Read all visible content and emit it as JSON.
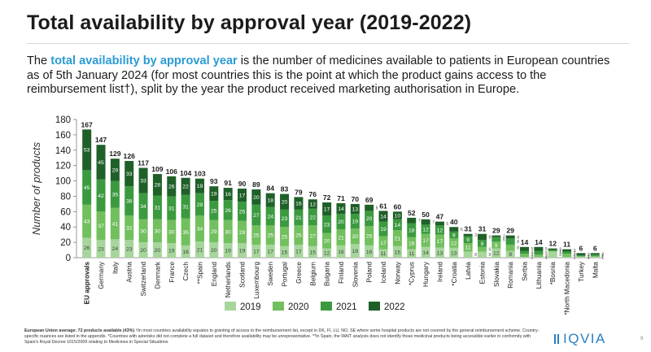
{
  "slide": {
    "title": "Total availability by approval year (2019-2022)",
    "intro_pre": "The ",
    "intro_highlight": "total availability by approval year",
    "intro_post": " is the number of medicines available to patients in European countries as of 5th January 2024 (for most countries this is the point at which the product gains access to the reimbursement list†), split by the year the product received marketing authorisation in Europe.",
    "footnote_bold": "European Union average: 72 products available (43%)",
    "footnote_text": " †In most countries availability equates to granting of access to the reimbursement list, except in DK, FI, LU, NO, SE where some hospital products are not covered by the general reimbursement scheme. Country-specific nuances are listed in the appendix. *Countries with asterisks did not complete a full dataset and therefore availability may be unrepresentative. **In Spain, the WAIT analysis does not identify those medicinal products being accessible earlier in conformity with Spain's Royal Decree 1015/2009 relating to Medicines in Special Situations",
    "logo_text": "IQVIA",
    "page_number": "9"
  },
  "chart_data": {
    "type": "bar",
    "stacked": true,
    "title": "",
    "ylabel": "Number of products",
    "xlabel": "",
    "ylim": [
      0,
      180
    ],
    "yticks": [
      0,
      20,
      40,
      60,
      80,
      100,
      120,
      140,
      160,
      180
    ],
    "legend_position": "bottom",
    "categories": [
      "EU approvals",
      "Germany",
      "Italy",
      "Austria",
      "Switzerland",
      "Denmark",
      "France",
      "Czech",
      "**Spain",
      "England",
      "Netherlands",
      "Scotland",
      "Luxembourg",
      "Sweden",
      "Portugal",
      "Greece",
      "Belgium",
      "Bulgaria",
      "Finland",
      "Slovenia",
      "Poland",
      "Iceland",
      "Norway",
      "*Cyprus",
      "Hungary",
      "Ireland",
      "*Croatia",
      "Latvia",
      "Estonia",
      "Slovakia",
      "Romania",
      "Serbia",
      "Lithuania",
      "*Bosnia",
      "*North Macedonia",
      "Turkey",
      "Malta"
    ],
    "totals": [
      167,
      147,
      129,
      126,
      117,
      109,
      106,
      104,
      103,
      93,
      91,
      90,
      89,
      84,
      83,
      79,
      76,
      72,
      71,
      70,
      69,
      61,
      60,
      52,
      50,
      47,
      40,
      31,
      31,
      29,
      29,
      14,
      14,
      12,
      11,
      6,
      6
    ],
    "series": [
      {
        "name": "2019",
        "color": "#a6d69b",
        "values": [
          26,
          23,
          24,
          23,
          20,
          20,
          19,
          16,
          21,
          20,
          19,
          19,
          17,
          17,
          15,
          17,
          15,
          12,
          16,
          18,
          16,
          11,
          15,
          11,
          14,
          13,
          13,
          8,
          8,
          12,
          9,
          1,
          1,
          8,
          1,
          1,
          1
        ]
      },
      {
        "name": "2020",
        "color": "#72bf5e",
        "values": [
          43,
          37,
          41,
          32,
          30,
          30,
          30,
          35,
          34,
          29,
          30,
          29,
          25,
          25,
          25,
          25,
          27,
          20,
          21,
          20,
          25,
          17,
          21,
          16,
          17,
          17,
          12,
          11,
          6,
          9,
          8,
          4,
          3,
          1,
          4,
          1,
          1
        ]
      },
      {
        "name": "2021",
        "color": "#3b9a3f",
        "values": [
          45,
          42,
          35,
          38,
          34,
          31,
          31,
          31,
          29,
          25,
          26,
          25,
          27,
          24,
          23,
          21,
          22,
          23,
          20,
          19,
          20,
          19,
          14,
          18,
          12,
          12,
          9,
          9,
          9,
          6,
          8,
          4,
          5,
          1,
          3,
          1,
          2
        ]
      },
      {
        "name": "2022",
        "color": "#1f6028",
        "values": [
          53,
          45,
          29,
          33,
          33,
          28,
          26,
          22,
          19,
          19,
          16,
          17,
          20,
          18,
          20,
          16,
          12,
          17,
          14,
          13,
          8,
          14,
          10,
          7,
          7,
          5,
          6,
          3,
          8,
          2,
          4,
          5,
          5,
          2,
          3,
          3,
          2
        ]
      }
    ]
  }
}
